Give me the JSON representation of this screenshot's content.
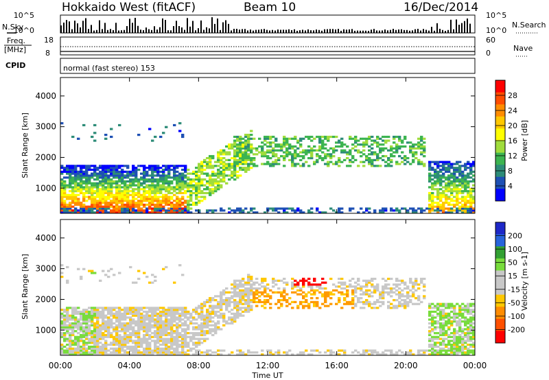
{
  "header": {
    "station": "Hokkaido West (fitACF)",
    "beam": "Beam 10",
    "date": "16/Dec/2014"
  },
  "params": {
    "nsky_label": "N.Sky",
    "nsky_ticks": [
      "10^5",
      "10^0"
    ],
    "nsearch_label": "N.Search",
    "nsearch_ticks": [
      "10^5",
      "10^0"
    ],
    "freq_label_line1": "Freq.",
    "freq_label_line2": "[MHz]",
    "freq_ticks": [
      "18",
      "8"
    ],
    "nave_label": "Nave",
    "nave_ticks": [
      "60",
      "0"
    ],
    "cpid_label": "CPID",
    "cpid_text": "normal (fast stereo) 153"
  },
  "chart_data": [
    {
      "type": "heatmap",
      "name": "power",
      "ylabel": "Slant Range [km]",
      "yticks": [
        1000,
        2000,
        3000,
        4000
      ],
      "ylim": [
        180,
        4600
      ],
      "xlim": [
        0,
        24
      ],
      "colorbar": {
        "label": "Power [dB]",
        "ticks": [
          "28",
          "24",
          "20",
          "16",
          "12",
          "8",
          "4"
        ],
        "colors": [
          "#ff0000",
          "#ff4d00",
          "#ff8c00",
          "#ffc800",
          "#ffff00",
          "#a0dc3c",
          "#3cb450",
          "#2d8c78",
          "#1e50b4",
          "#0000ff"
        ]
      }
    },
    {
      "type": "heatmap",
      "name": "velocity",
      "ylabel": "Slant Range [km]",
      "yticks": [
        1000,
        2000,
        3000,
        4000
      ],
      "ylim": [
        180,
        4600
      ],
      "xlim": [
        0,
        24
      ],
      "colorbar": {
        "label": "Velocity [m s-1]",
        "ticks": [
          "200",
          "100",
          "50",
          "15",
          "-15",
          "-50",
          "-100",
          "-200"
        ],
        "colors": [
          "#1e28c8",
          "#2864dc",
          "#32a032",
          "#78dc3c",
          "#c8c8c8",
          "#c8c8c8",
          "#ffc800",
          "#ff8c00",
          "#ff5000",
          "#ff0000"
        ]
      }
    }
  ],
  "xaxis": {
    "label": "Time UT",
    "ticks": [
      "00:00",
      "04:00",
      "08:00",
      "12:00",
      "16:00",
      "20:00",
      "00:00"
    ]
  }
}
